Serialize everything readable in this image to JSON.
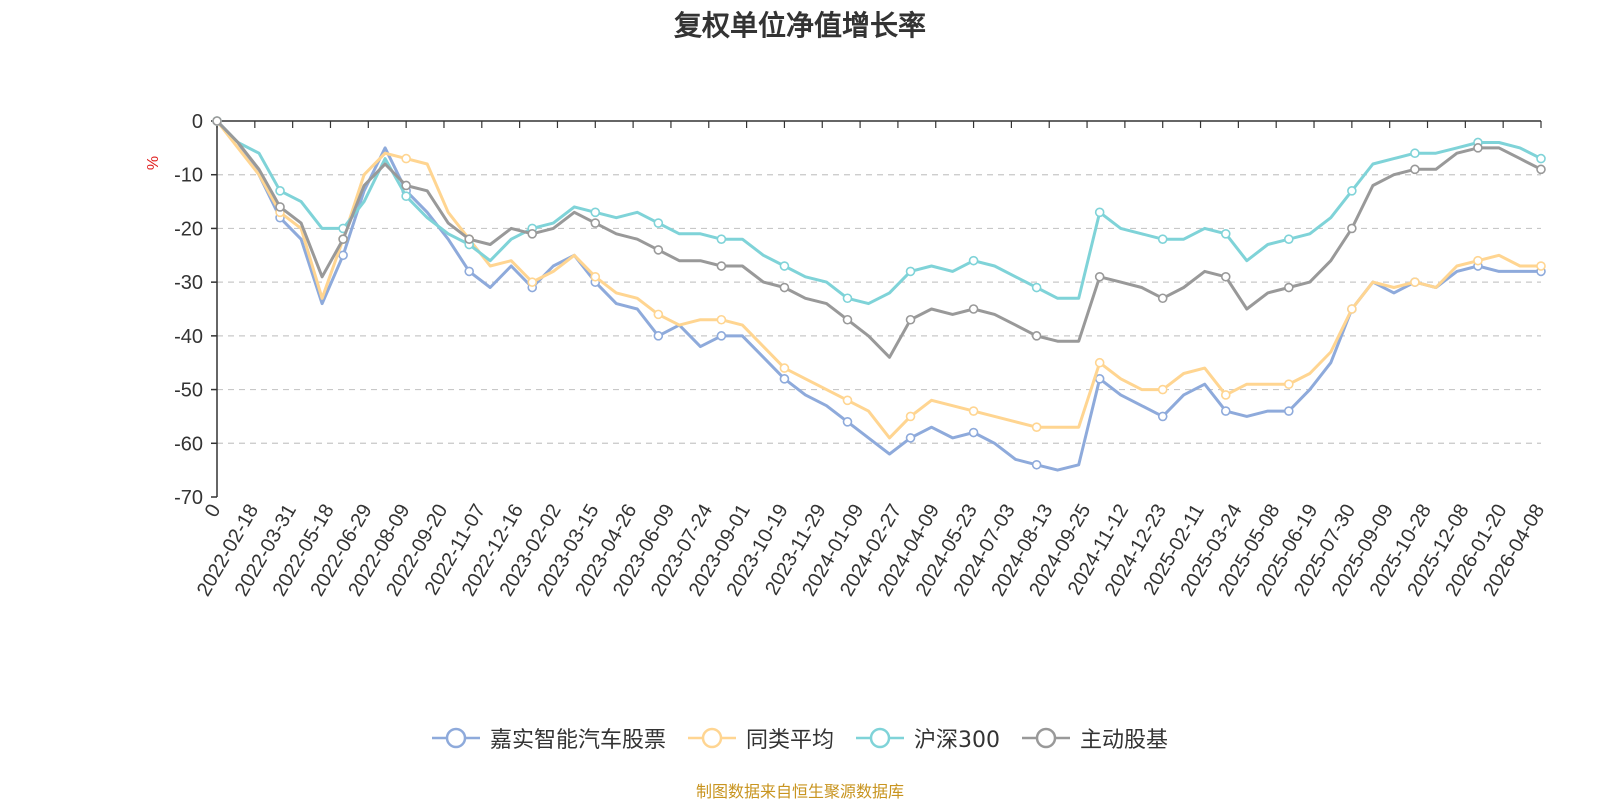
{
  "chart_data": {
    "type": "line",
    "title": "复权单位净值增长率",
    "ylabel": "%",
    "ylim": [
      -70,
      0
    ],
    "yticks": [
      0,
      -10,
      -20,
      -30,
      -40,
      -50,
      -60,
      -70
    ],
    "x_tick_labels": [
      "0",
      "2022-02-18",
      "2022-03-31",
      "2022-05-18",
      "2022-06-29",
      "2022-08-09",
      "2022-09-20",
      "2022-11-07",
      "2022-12-16",
      "2023-02-02",
      "2023-03-15",
      "2023-04-26",
      "2023-06-09",
      "2023-07-24",
      "2023-09-01",
      "2023-10-19",
      "2023-11-29",
      "2024-01-09",
      "2024-02-27",
      "2024-04-09",
      "2024-05-23",
      "2024-07-03",
      "2024-08-13",
      "2024-09-25",
      "2024-11-12",
      "2024-12-23",
      "2025-02-11",
      "2025-03-24",
      "2025-05-08",
      "2025-06-19",
      "2025-07-30",
      "2025-09-09",
      "2025-10-28",
      "2025-12-08",
      "2026-01-20",
      "2026-04-08"
    ],
    "grid": "horizontal-dashed",
    "legend_position": "bottom",
    "series": [
      {
        "name": "嘉实智能汽车股票",
        "color": "#8eaadb",
        "values": [
          0,
          -4,
          -10,
          -18,
          -22,
          -34,
          -25,
          -13,
          -5,
          -13,
          -17,
          -22,
          -28,
          -31,
          -27,
          -31,
          -27,
          -25,
          -30,
          -34,
          -35,
          -40,
          -38,
          -42,
          -40,
          -40,
          -44,
          -48,
          -51,
          -53,
          -56,
          -59,
          -62,
          -59,
          -57,
          -59,
          -58,
          -60,
          -63,
          -64,
          -65,
          -64,
          -48,
          -51,
          -53,
          -55,
          -51,
          -49,
          -54,
          -55,
          -54,
          -54,
          -50,
          -45,
          -35,
          -30,
          -32,
          -30,
          -31,
          -28,
          -27,
          -28,
          -28,
          -28
        ]
      },
      {
        "name": "同类平均",
        "color": "#ffd591",
        "values": [
          0,
          -5,
          -10,
          -17,
          -20,
          -33,
          -22,
          -10,
          -6,
          -7,
          -8,
          -17,
          -22,
          -27,
          -26,
          -30,
          -28,
          -25,
          -29,
          -32,
          -33,
          -36,
          -38,
          -37,
          -37,
          -38,
          -42,
          -46,
          -48,
          -50,
          -52,
          -54,
          -59,
          -55,
          -52,
          -53,
          -54,
          -55,
          -56,
          -57,
          -57,
          -57,
          -45,
          -48,
          -50,
          -50,
          -47,
          -46,
          -51,
          -49,
          -49,
          -49,
          -47,
          -43,
          -35,
          -30,
          -31,
          -30,
          -31,
          -27,
          -26,
          -25,
          -27,
          -27
        ]
      },
      {
        "name": "沪深300",
        "color": "#7fd3d8",
        "values": [
          0,
          -4,
          -6,
          -13,
          -15,
          -20,
          -20,
          -15,
          -7,
          -14,
          -18,
          -21,
          -23,
          -26,
          -22,
          -20,
          -19,
          -16,
          -17,
          -18,
          -17,
          -19,
          -21,
          -21,
          -22,
          -22,
          -25,
          -27,
          -29,
          -30,
          -33,
          -34,
          -32,
          -28,
          -27,
          -28,
          -26,
          -27,
          -29,
          -31,
          -33,
          -33,
          -17,
          -20,
          -21,
          -22,
          -22,
          -20,
          -21,
          -26,
          -23,
          -22,
          -21,
          -18,
          -13,
          -8,
          -7,
          -6,
          -6,
          -5,
          -4,
          -4,
          -5,
          -7
        ]
      },
      {
        "name": "主动股基",
        "color": "#999999",
        "values": [
          0,
          -4,
          -9,
          -16,
          -19,
          -29,
          -22,
          -12,
          -8,
          -12,
          -13,
          -19,
          -22,
          -23,
          -20,
          -21,
          -20,
          -17,
          -19,
          -21,
          -22,
          -24,
          -26,
          -26,
          -27,
          -27,
          -30,
          -31,
          -33,
          -34,
          -37,
          -40,
          -44,
          -37,
          -35,
          -36,
          -35,
          -36,
          -38,
          -40,
          -41,
          -41,
          -29,
          -30,
          -31,
          -33,
          -31,
          -28,
          -29,
          -35,
          -32,
          -31,
          -30,
          -26,
          -20,
          -12,
          -10,
          -9,
          -9,
          -6,
          -5,
          -5,
          -7,
          -9
        ]
      }
    ]
  },
  "footer": {
    "source": "制图数据来自恒生聚源数据库"
  }
}
